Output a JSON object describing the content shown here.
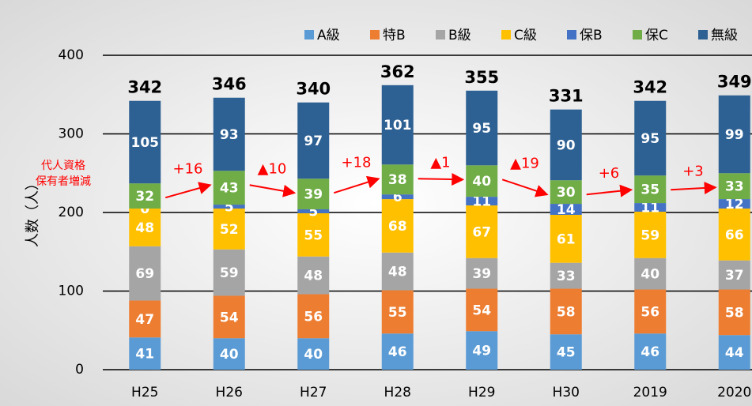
{
  "chart_data": {
    "type": "stacked_bar",
    "y_label": "人数（人）",
    "annotation_lines": [
      "代人資格",
      "保有者増減"
    ],
    "categories": [
      "H25",
      "H26",
      "H27",
      "H28",
      "H29",
      "H30",
      "2019",
      "2020"
    ],
    "series": [
      {
        "name": "A級",
        "color": "#5b9bd5",
        "values": [
          41,
          40,
          40,
          46,
          49,
          45,
          46,
          44
        ]
      },
      {
        "name": "特B",
        "color": "#ed7d31",
        "values": [
          47,
          54,
          56,
          55,
          54,
          58,
          56,
          58
        ]
      },
      {
        "name": "B級",
        "color": "#a5a5a5",
        "values": [
          69,
          59,
          48,
          48,
          39,
          33,
          40,
          37
        ]
      },
      {
        "name": "C級",
        "color": "#ffc000",
        "values": [
          48,
          52,
          55,
          68,
          67,
          61,
          59,
          66
        ]
      },
      {
        "name": "保B",
        "color": "#4472c4",
        "values": [
          0,
          5,
          5,
          6,
          11,
          14,
          11,
          12
        ]
      },
      {
        "name": "保C",
        "color": "#70ad47",
        "values": [
          32,
          43,
          39,
          38,
          40,
          30,
          35,
          33
        ]
      },
      {
        "name": "無級",
        "color": "#2e6193",
        "values": [
          105,
          93,
          97,
          101,
          95,
          90,
          95,
          99
        ]
      }
    ],
    "totals": [
      342,
      346,
      340,
      362,
      355,
      331,
      342,
      349
    ],
    "changes": [
      "+16",
      "▲10",
      "+18",
      "▲1",
      "▲19",
      "+6",
      "+3"
    ],
    "change_color": "#ff0000",
    "ylim": [
      0,
      400
    ],
    "yticks": [
      0,
      100,
      200,
      300,
      400
    ],
    "grid": true,
    "legend": "top-right"
  }
}
